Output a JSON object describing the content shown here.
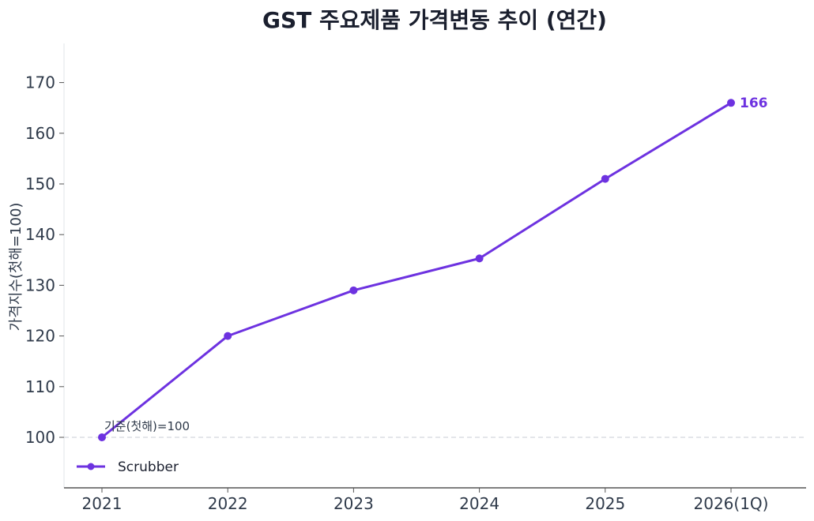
{
  "chart_data": {
    "type": "line",
    "title": "GST 주요제품 가격변동 추이 (연간)",
    "xlabel": "",
    "ylabel": "가격지수(첫해=100)",
    "categories": [
      "2021",
      "2022",
      "2023",
      "2024",
      "2025",
      "2026(1Q)"
    ],
    "series": [
      {
        "name": "Scrubber",
        "values": [
          100,
          120,
          129,
          135.3,
          151,
          166
        ],
        "color": "#6d32e0"
      }
    ],
    "ylim": [
      90,
      178
    ],
    "yticks": [
      100,
      110,
      120,
      130,
      140,
      150,
      160,
      170
    ],
    "baseline": {
      "value": 100,
      "label": "기준(첫해)=100"
    },
    "end_label": "166",
    "legend_position": "lower-left",
    "grid": false
  }
}
